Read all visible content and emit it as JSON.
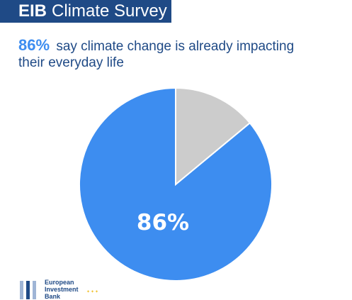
{
  "header": {
    "brand": "EIB",
    "title": "Climate Survey"
  },
  "headline": {
    "highlight": "86%",
    "text_line1": "say climate change is already impacting",
    "text_line2": "their everyday life"
  },
  "logo": {
    "line1": "European",
    "line2": "Investment",
    "line3": "Bank"
  },
  "chart_data": {
    "type": "pie",
    "title": "",
    "slices": [
      {
        "label": "86%",
        "value": 86,
        "color": "#3d8df0"
      },
      {
        "label": "",
        "value": 14,
        "color": "#cccccc"
      }
    ],
    "start_angle_deg": 0,
    "direction": "clockwise"
  }
}
